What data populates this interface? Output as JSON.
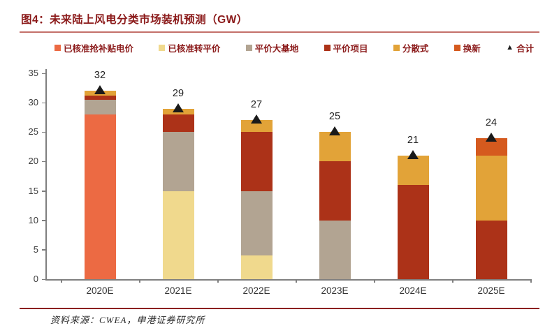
{
  "header": {
    "title": "图4：未来陆上风电分类市场装机预测（GW）"
  },
  "footer": {
    "source": "资料来源：CWEA，申港证券研究所"
  },
  "colors": {
    "title_text": "#8B1A1A",
    "title_rule": "#C4706A",
    "footer_rule": "#8B2020",
    "axis_line": "#7F7F7F",
    "axis_text": "#3C3C3C",
    "legend_text": "#8B1A1A",
    "total_marker": "#1A1A1A"
  },
  "chart_data": {
    "type": "bar",
    "stacked": true,
    "title": "未来陆上风电分类市场装机预测（GW）",
    "unit": "GW",
    "categories": [
      "2020E",
      "2021E",
      "2022E",
      "2023E",
      "2024E",
      "2025E"
    ],
    "series": [
      {
        "name": "已核准抢补贴电价",
        "color": "#EC6A43",
        "values": [
          28,
          0,
          0,
          0,
          0,
          0
        ]
      },
      {
        "name": "已核准转平价",
        "color": "#F0D98D",
        "values": [
          0,
          15,
          4,
          0,
          0,
          0
        ]
      },
      {
        "name": "平价大基地",
        "color": "#B2A492",
        "values": [
          2.5,
          10,
          11,
          10,
          0,
          0
        ]
      },
      {
        "name": "平价项目",
        "color": "#AC3218",
        "values": [
          0.75,
          3,
          10,
          10,
          16,
          10
        ]
      },
      {
        "name": "分散式",
        "color": "#E2A338",
        "values": [
          0.75,
          1,
          2,
          5,
          5,
          11
        ]
      },
      {
        "name": "换新",
        "color": "#D55A1E",
        "values": [
          0,
          0,
          0,
          0,
          0,
          3
        ]
      }
    ],
    "totals": {
      "name": "合计",
      "marker": "triangle",
      "color": "#1A1A1A",
      "values": [
        32,
        29,
        27,
        25,
        21,
        24
      ]
    },
    "ylim": [
      0,
      35
    ],
    "ytick_step": 5,
    "yticks": [
      0,
      5,
      10,
      15,
      20,
      25,
      30,
      35
    ],
    "grid": false,
    "legend_position": "top"
  }
}
